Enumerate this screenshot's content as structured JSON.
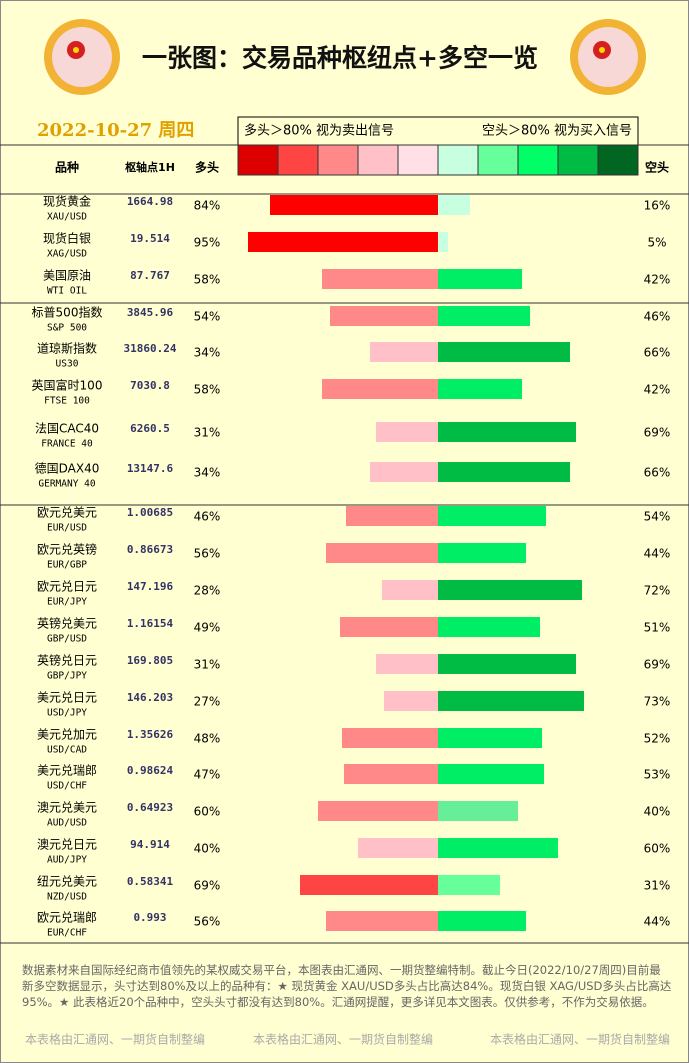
{
  "header": {
    "title": "一张图：交易品种枢纽点+多空一览",
    "date": "2022-10-27 周四",
    "long_rule": "多头＞80% 视为卖出信号",
    "short_rule": "空头＞80% 视为买入信号",
    "swatches": [
      "#dd0000",
      "#ff4444",
      "#ff8888",
      "#ffc0c8",
      "#ffe0e6",
      "#c8ffe0",
      "#66ff99",
      "#00ff66",
      "#00bb44",
      "#006622"
    ]
  },
  "columns": {
    "name": "品种",
    "pivot": "枢轴点1H",
    "long": "多头",
    "short": "空头"
  },
  "groups": [
    [
      {
        "name": "现货黄金",
        "code": "XAU/USD",
        "pivot": "1664.98",
        "long": 84,
        "long_label": "84%",
        "long_color": "#ff0000",
        "short": 16,
        "short_label": "16%",
        "short_color": "#c8ffe0"
      },
      {
        "name": "现货白银",
        "code": "XAG/USD",
        "pivot": "19.514",
        "long": 95,
        "long_label": "95%",
        "long_color": "#ff0000",
        "short": 5,
        "short_label": "5%",
        "short_color": "#c8ffe0"
      },
      {
        "name": "美国原油",
        "code": "WTI OIL",
        "pivot": "87.767",
        "long": 58,
        "long_label": "58%",
        "long_color": "#ff8888",
        "short": 42,
        "short_label": "42%",
        "short_color": "#00ee66"
      }
    ],
    [
      {
        "name": "标普500指数",
        "code": "S&P 500",
        "pivot": "3845.96",
        "long": 54,
        "long_label": "54%",
        "long_color": "#ff8888",
        "short": 46,
        "short_label": "46%",
        "short_color": "#00ee66"
      },
      {
        "name": "道琼斯指数",
        "code": "US30",
        "pivot": "31860.24",
        "long": 34,
        "long_label": "34%",
        "long_color": "#ffc0c8",
        "short": 66,
        "short_label": "66%",
        "short_color": "#00bb44"
      },
      {
        "name": "英国富时100",
        "code": "FTSE 100",
        "pivot": "7030.8",
        "long": 58,
        "long_label": "58%",
        "long_color": "#ff8888",
        "short": 42,
        "short_label": "42%",
        "short_color": "#00ee66"
      },
      {
        "name": "法国CAC40",
        "code": "FRANCE 40",
        "pivot": "6260.5",
        "long": 31,
        "long_label": "31%",
        "long_color": "#ffc0c8",
        "short": 69,
        "short_label": "69%",
        "short_color": "#00bb44"
      },
      {
        "name": "德国DAX40",
        "code": "GERMANY 40",
        "pivot": "13147.6",
        "long": 34,
        "long_label": "34%",
        "long_color": "#ffc0c8",
        "short": 66,
        "short_label": "66%",
        "short_color": "#00bb44"
      }
    ],
    [
      {
        "name": "欧元兑美元",
        "code": "EUR/USD",
        "pivot": "1.00685",
        "long": 46,
        "long_label": "46%",
        "long_color": "#ff8888",
        "short": 54,
        "short_label": "54%",
        "short_color": "#00ee66"
      },
      {
        "name": "欧元兑英镑",
        "code": "EUR/GBP",
        "pivot": "0.86673",
        "long": 56,
        "long_label": "56%",
        "long_color": "#ff8888",
        "short": 44,
        "short_label": "44%",
        "short_color": "#00ee66"
      },
      {
        "name": "欧元兑日元",
        "code": "EUR/JPY",
        "pivot": "147.196",
        "long": 28,
        "long_label": "28%",
        "long_color": "#ffc0c8",
        "short": 72,
        "short_label": "72%",
        "short_color": "#00bb44"
      },
      {
        "name": "英镑兑美元",
        "code": "GBP/USD",
        "pivot": "1.16154",
        "long": 49,
        "long_label": "49%",
        "long_color": "#ff8888",
        "short": 51,
        "short_label": "51%",
        "short_color": "#00ee66"
      },
      {
        "name": "英镑兑日元",
        "code": "GBP/JPY",
        "pivot": "169.805",
        "long": 31,
        "long_label": "31%",
        "long_color": "#ffc0c8",
        "short": 69,
        "short_label": "69%",
        "short_color": "#00bb44"
      },
      {
        "name": "美元兑日元",
        "code": "USD/JPY",
        "pivot": "146.203",
        "long": 27,
        "long_label": "27%",
        "long_color": "#ffc0c8",
        "short": 73,
        "short_label": "73%",
        "short_color": "#00bb44"
      },
      {
        "name": "美元兑加元",
        "code": "USD/CAD",
        "pivot": "1.35626",
        "long": 48,
        "long_label": "48%",
        "long_color": "#ff8888",
        "short": 52,
        "short_label": "52%",
        "short_color": "#00ee66"
      },
      {
        "name": "美元兑瑞郎",
        "code": "USD/CHF",
        "pivot": "0.98624",
        "long": 47,
        "long_label": "47%",
        "long_color": "#ff8888",
        "short": 53,
        "short_label": "53%",
        "short_color": "#00ee66"
      },
      {
        "name": "澳元兑美元",
        "code": "AUD/USD",
        "pivot": "0.64923",
        "long": 60,
        "long_label": "60%",
        "long_color": "#ff8888",
        "short": 40,
        "short_label": "40%",
        "short_color": "#66ee99"
      },
      {
        "name": "澳元兑日元",
        "code": "AUD/JPY",
        "pivot": "94.914",
        "long": 40,
        "long_label": "40%",
        "long_color": "#ffc0c8",
        "short": 60,
        "short_label": "60%",
        "short_color": "#00ee66"
      },
      {
        "name": "纽元兑美元",
        "code": "NZD/USD",
        "pivot": "0.58341",
        "long": 69,
        "long_label": "69%",
        "long_color": "#ff4444",
        "short": 31,
        "short_label": "31%",
        "short_color": "#66ff99"
      },
      {
        "name": "欧元兑瑞郎",
        "code": "EUR/CHF",
        "pivot": "0.993",
        "long": 56,
        "long_label": "56%",
        "long_color": "#ff8888",
        "short": 44,
        "short_label": "44%",
        "short_color": "#00ee66"
      }
    ]
  ],
  "footer": {
    "note": "数据素材来自国际经纪商市值领先的某权威交易平台，本图表由汇通网、一期货整编特制。截止今日(2022/10/27周四)目前最新多空数据显示，头寸达到80%及以上的品种有：★ 现货黄金 XAU/USD多头占比高达84%。现货白银 XAG/USD多头占比高达95%。★ 此表格近20个品种中，空头头寸都没有达到80%。汇通网提醒，更多详见本文图表。仅供参考，不作为交易依据。",
    "watermarks": [
      "本表格由汇通网、一期货自制整编",
      "本表格由汇通网、一期货自制整编",
      "本表格由汇通网、一期货自制整编"
    ]
  }
}
